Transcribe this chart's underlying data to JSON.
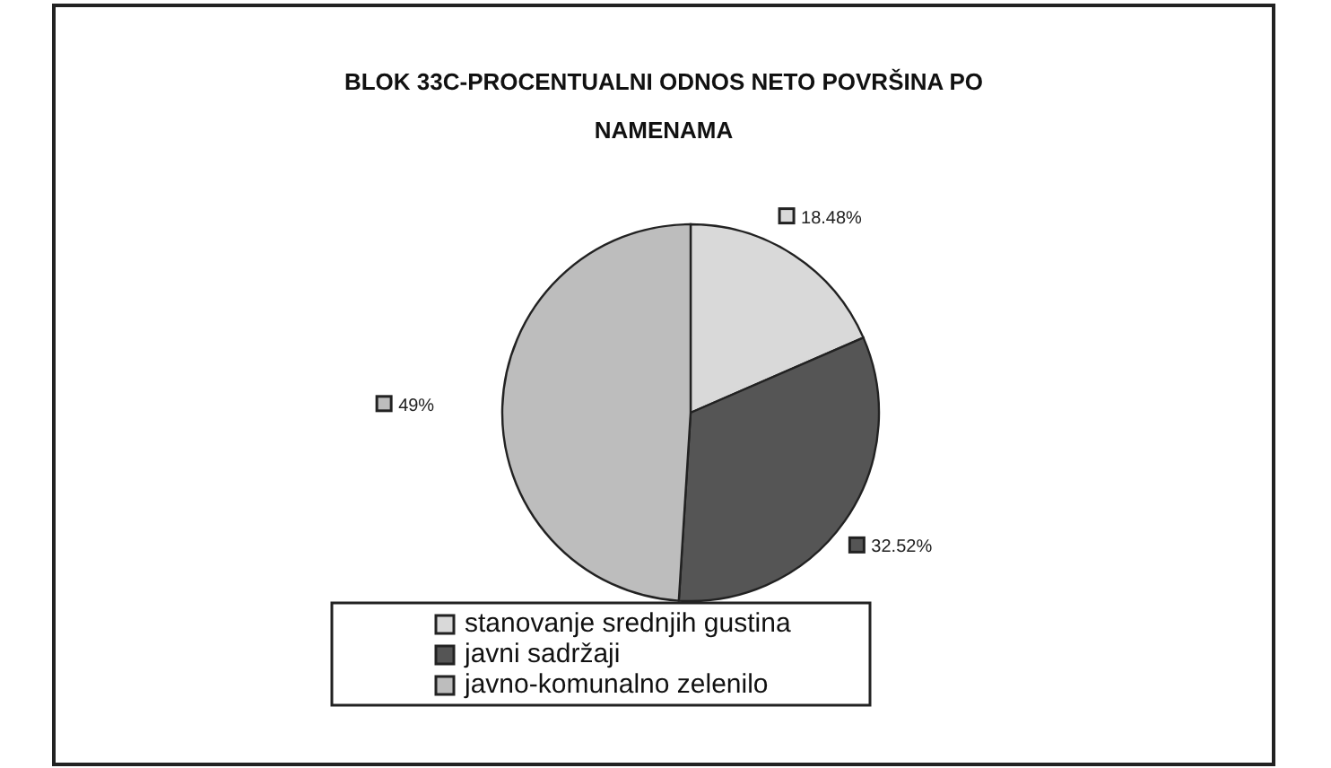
{
  "chart_data": {
    "type": "pie",
    "title": "BLOK 33C-PROCENTUALNI ODNOS NETO POVRŠINA PO NAMENAMA",
    "categories": [
      "stanovanje srednjih gustina",
      "javni sadržaji",
      "javno-komunalno zelenilo"
    ],
    "values": [
      18.48,
      32.52,
      49
    ],
    "value_labels": [
      "18.48%",
      "32.52%",
      "49%"
    ],
    "colors": [
      "#d9d9d9",
      "#555555",
      "#bdbdbd"
    ],
    "legend": "bottom"
  }
}
